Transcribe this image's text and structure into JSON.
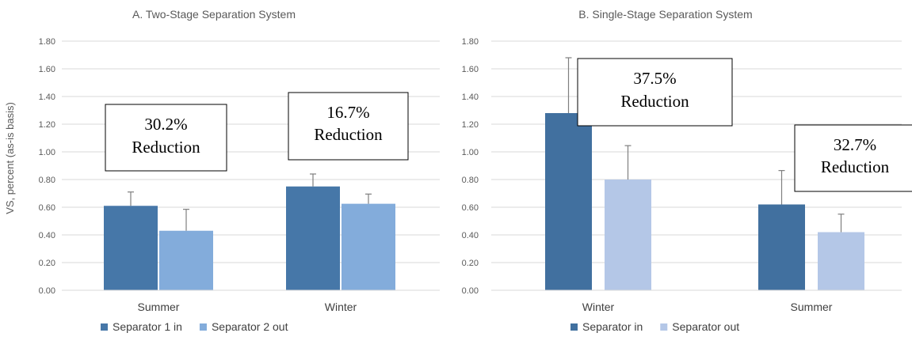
{
  "chart_data": [
    {
      "type": "bar",
      "title": "A. Two-Stage Separation System",
      "ylabel": "VS, percent (as-is basis)",
      "ylim": [
        0,
        1.8
      ],
      "yticks": [
        "0.00",
        "0.20",
        "0.40",
        "0.60",
        "0.80",
        "1.00",
        "1.20",
        "1.40",
        "1.60",
        "1.80"
      ],
      "categories": [
        "Summer",
        "Winter"
      ],
      "series": [
        {
          "name": "Separator 1 in",
          "color": "#4677a8",
          "values": [
            0.61,
            0.75
          ],
          "errors": [
            0.1,
            0.09
          ]
        },
        {
          "name": "Separator 2 out",
          "color": "#83acdb",
          "values": [
            0.43,
            0.625
          ],
          "errors": [
            0.155,
            0.07
          ]
        }
      ],
      "annotations": [
        {
          "category": 0,
          "line1": "30.2%",
          "line2": "Reduction"
        },
        {
          "category": 1,
          "line1": "16.7%",
          "line2": "Reduction"
        }
      ],
      "grid": true,
      "legend_position": "bottom-left"
    },
    {
      "type": "bar",
      "title": "B. Single-Stage Separation System",
      "ylabel": "",
      "ylim": [
        0,
        1.8
      ],
      "yticks": [
        "0.00",
        "0.20",
        "0.40",
        "0.60",
        "0.80",
        "1.00",
        "1.20",
        "1.40",
        "1.60",
        "1.80"
      ],
      "categories": [
        "Winter",
        "Summer"
      ],
      "series": [
        {
          "name": "Separator in",
          "color": "#41709f",
          "values": [
            1.28,
            0.62
          ],
          "errors": [
            0.4,
            0.245
          ]
        },
        {
          "name": "Separator out",
          "color": "#b4c7e7",
          "values": [
            0.8,
            0.42
          ],
          "errors": [
            0.245,
            0.13
          ]
        }
      ],
      "annotations": [
        {
          "category": 0,
          "line1": "37.5%",
          "line2": "Reduction"
        },
        {
          "category": 1,
          "line1": "32.7%",
          "line2": "Reduction"
        }
      ],
      "grid": true,
      "legend_position": "bottom-center"
    }
  ]
}
